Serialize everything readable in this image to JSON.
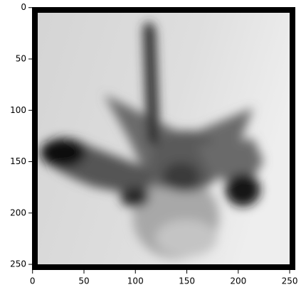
{
  "chart_data": {
    "type": "image",
    "xlim": [
      -0.5,
      255.5
    ],
    "ylim": [
      255.5,
      -0.5
    ],
    "xticks": [
      0,
      50,
      100,
      150,
      200,
      250
    ],
    "yticks": [
      0,
      50,
      100,
      150,
      200,
      250
    ]
  }
}
